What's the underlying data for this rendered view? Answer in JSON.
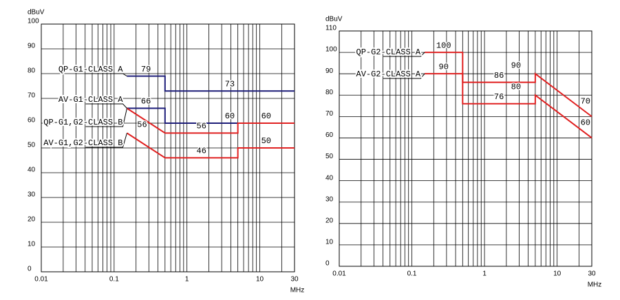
{
  "chart_data": [
    {
      "type": "line",
      "x_scale": "log",
      "x_label": "MHz",
      "y_label": "dBuV",
      "grid": true,
      "xlim": [
        0.01,
        30
      ],
      "xticks": [
        0.01,
        0.1,
        1,
        10,
        30
      ],
      "xminor": [
        0.02,
        0.03,
        0.04,
        0.05,
        0.06,
        0.07,
        0.08,
        0.09,
        0.2,
        0.3,
        0.4,
        0.5,
        0.6,
        0.7,
        0.8,
        0.9,
        2,
        3,
        4,
        5,
        6,
        7,
        8,
        9,
        20
      ],
      "ylim": [
        0,
        100
      ],
      "yticks": [
        0,
        10,
        20,
        30,
        40,
        50,
        60,
        70,
        80,
        90,
        100
      ],
      "series": [
        {
          "name": "QP-G1-CLASS A",
          "color": "#1c1c78",
          "x": [
            0.15,
            0.5,
            0.5,
            30
          ],
          "values": [
            79,
            79,
            73,
            73
          ],
          "labeled_points": [
            0,
            2
          ]
        },
        {
          "name": "AV-G1-CLASS A",
          "color": "#1c1c78",
          "x": [
            0.15,
            0.5,
            0.5,
            30
          ],
          "values": [
            66,
            66,
            60,
            60
          ],
          "labeled_points": [
            0,
            2
          ]
        },
        {
          "name": "QP-G1,G2-CLASS B",
          "color": "#e02020",
          "x": [
            0.15,
            0.5,
            5,
            5,
            30
          ],
          "values": [
            66,
            56,
            56,
            60,
            60
          ],
          "labeled_points": [
            1,
            3
          ]
        },
        {
          "name": "AV-G1,G2-CLASS B",
          "color": "#e02020",
          "x": [
            0.15,
            0.5,
            5,
            5,
            30
          ],
          "values": [
            56,
            46,
            46,
            50,
            50
          ],
          "labeled_points": [
            0,
            1,
            3
          ]
        }
      ]
    },
    {
      "type": "line",
      "x_scale": "log",
      "x_label": "MHz",
      "y_label": "dBuV",
      "grid": true,
      "xlim": [
        0.01,
        30
      ],
      "xticks": [
        0.01,
        0.1,
        1,
        10,
        30
      ],
      "xminor": [
        0.02,
        0.03,
        0.04,
        0.05,
        0.06,
        0.07,
        0.08,
        0.09,
        0.2,
        0.3,
        0.4,
        0.5,
        0.6,
        0.7,
        0.8,
        0.9,
        2,
        3,
        4,
        5,
        6,
        7,
        8,
        9,
        20
      ],
      "ylim": [
        0,
        110
      ],
      "yticks": [
        0,
        10,
        20,
        30,
        40,
        50,
        60,
        70,
        80,
        90,
        100,
        110
      ],
      "series": [
        {
          "name": "QP-G2-CLASS A",
          "color": "#e02020",
          "x": [
            0.15,
            0.5,
            0.5,
            5,
            5,
            30
          ],
          "values": [
            100,
            100,
            86,
            86,
            90,
            70
          ],
          "labeled_points": [
            0,
            2,
            4,
            5
          ]
        },
        {
          "name": "AV-G2-CLASS A",
          "color": "#e02020",
          "x": [
            0.15,
            0.5,
            0.5,
            5,
            5,
            30
          ],
          "values": [
            90,
            90,
            76,
            76,
            80,
            60
          ],
          "labeled_points": [
            0,
            2,
            4,
            5
          ]
        }
      ]
    }
  ]
}
